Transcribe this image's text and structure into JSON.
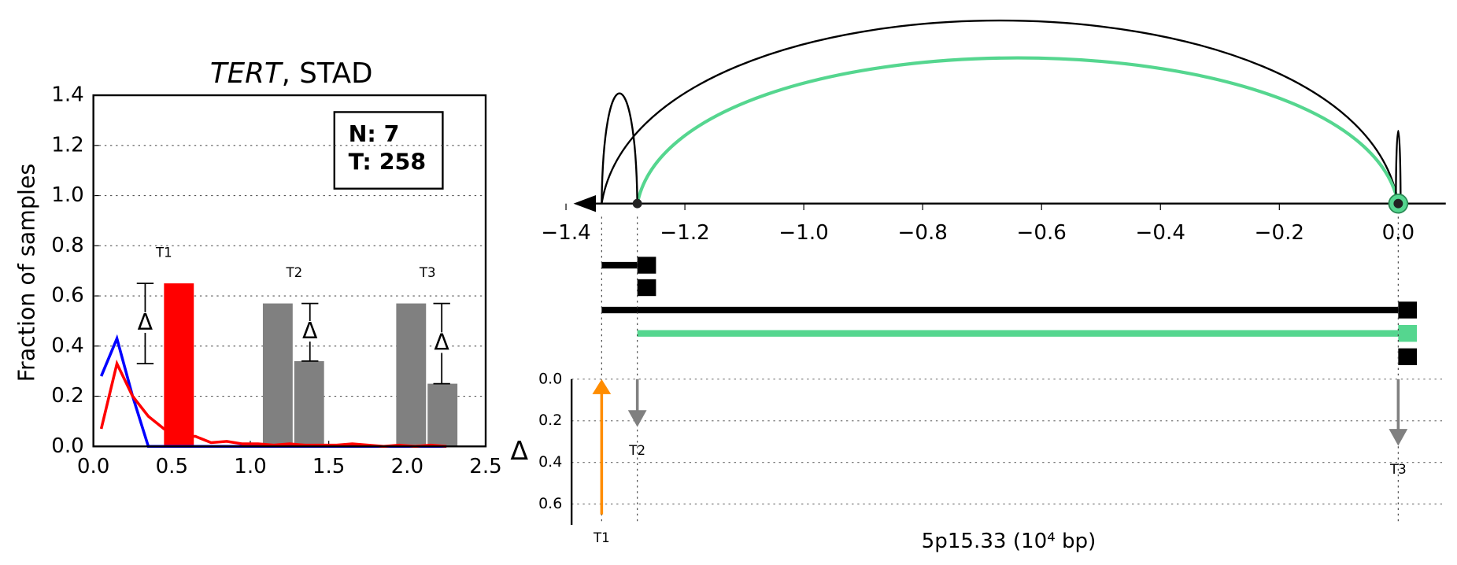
{
  "chart_data": [
    {
      "type": "line",
      "title": "TERT",
      "title_suffix": ", STAD",
      "ylabel": "Fraction of samples",
      "xlim": [
        0,
        2.5
      ],
      "ylim": [
        0,
        1.4
      ],
      "xticks": [
        {
          "value": 0,
          "label": "0.0"
        },
        {
          "value": 0.5,
          "label": "0.5"
        },
        {
          "value": 1,
          "label": "1.0"
        },
        {
          "value": 1.5,
          "label": "1.5"
        },
        {
          "value": 2,
          "label": "2.0"
        },
        {
          "value": 2.5,
          "label": "2.5"
        }
      ],
      "yticks": [
        {
          "value": 0,
          "label": "0.0"
        },
        {
          "value": 0.2,
          "label": "0.2"
        },
        {
          "value": 0.4,
          "label": "0.4"
        },
        {
          "value": 0.6,
          "label": "0.6"
        },
        {
          "value": 0.8,
          "label": "0.8"
        },
        {
          "value": 1,
          "label": "1.0"
        },
        {
          "value": 1.2,
          "label": "1.2"
        },
        {
          "value": 1.4,
          "label": "1.4"
        }
      ],
      "grid": true,
      "legend_box": [
        "N: 7",
        "T: 258"
      ],
      "x": [
        0.05,
        0.15,
        0.25,
        0.35,
        0.45,
        0.55,
        0.65,
        0.75,
        0.85,
        0.95,
        1.05,
        1.15,
        1.25,
        1.35,
        1.45,
        1.55,
        1.65,
        1.75,
        1.85,
        1.95,
        2.05,
        2.15,
        2.25
      ],
      "series": [
        {
          "color": "#0000ff",
          "values": [
            0.28,
            0.43,
            0.2,
            0,
            0,
            0,
            0,
            0,
            0,
            0,
            0,
            0,
            0,
            0,
            0,
            0,
            0,
            0,
            0,
            0,
            0,
            0,
            0
          ]
        },
        {
          "color": "#ff0000",
          "values": [
            0.07,
            0.33,
            0.2,
            0.12,
            0.07,
            0.04,
            0.04,
            0.015,
            0.02,
            0.01,
            0.01,
            0.005,
            0.01,
            0.005,
            0.005,
            0.005,
            0.01,
            0.005,
            0,
            0.005,
            0,
            0.005,
            0
          ]
        }
      ],
      "bars": [
        {
          "label": "T1",
          "color": "#ff0000",
          "x": [
            0.45
          ],
          "values": [
            0.65
          ]
        },
        {
          "label": "T2",
          "color": "#808080",
          "x": [
            1.08,
            1.28
          ],
          "values": [
            0.57,
            0.34
          ]
        },
        {
          "label": "T3",
          "color": "#808080",
          "x": [
            1.93,
            2.13
          ],
          "values": [
            0.57,
            0.25
          ]
        }
      ],
      "bar_width": 0.19,
      "delta_symbol": "Δ",
      "deltas": [
        {
          "x": 0.33,
          "values": [
            0.33,
            0.65
          ]
        },
        {
          "x": 1.38,
          "values": [
            0.34,
            0.57
          ]
        },
        {
          "x": 2.22,
          "values": [
            0.25,
            0.57
          ]
        }
      ]
    },
    {
      "type": "genome",
      "xlim": [
        -1.4,
        0.08
      ],
      "xticks": [
        {
          "value": -1.4,
          "label": "−1.4"
        },
        {
          "value": -1.2,
          "label": "−1.2"
        },
        {
          "value": -1,
          "label": "−1.0"
        },
        {
          "value": -0.8,
          "label": "−0.8"
        },
        {
          "value": -0.6,
          "label": "−0.6"
        },
        {
          "value": -0.4,
          "label": "−0.4"
        },
        {
          "value": -0.2,
          "label": "−0.2"
        },
        {
          "value": 0,
          "label": "0.0"
        }
      ],
      "xlabel": "5p15.33 (10⁴ bp)",
      "arcs": [
        {
          "start": -1.34,
          "end": 0,
          "color": "#000000"
        },
        {
          "start": -1.28,
          "end": 0,
          "color": "#55d68f"
        },
        {
          "start": -1.34,
          "end": -1.28,
          "color": "#000000"
        },
        {
          "start": -0.004,
          "end": 0.004,
          "color": "#000000"
        }
      ],
      "breakpoints": [
        -1.28,
        0
      ],
      "transcripts": [
        {
          "start": -1.34,
          "end": -1.28,
          "color": "#000000"
        },
        {
          "start": -1.34,
          "end": 0,
          "color": "#000000"
        },
        {
          "start": -1.28,
          "end": 0,
          "color": "#55d68f"
        }
      ],
      "ylabel": "Δ",
      "ylim": [
        0,
        0.7
      ],
      "yticks": [
        {
          "value": 0,
          "label": "0.0"
        },
        {
          "value": 0.2,
          "label": "0.2"
        },
        {
          "value": 0.4,
          "label": "0.4"
        },
        {
          "value": 0.6,
          "label": "0.6"
        }
      ],
      "shifts": [
        {
          "label": "T1",
          "x": -1.34,
          "value": 0.65,
          "color": "#ff8c00",
          "direction": "up"
        },
        {
          "label": "T2",
          "x": -1.28,
          "value": 0.23,
          "color": "#808080",
          "direction": "down"
        },
        {
          "label": "T3",
          "x": 0,
          "value": 0.32,
          "color": "#808080",
          "direction": "down"
        }
      ]
    }
  ]
}
